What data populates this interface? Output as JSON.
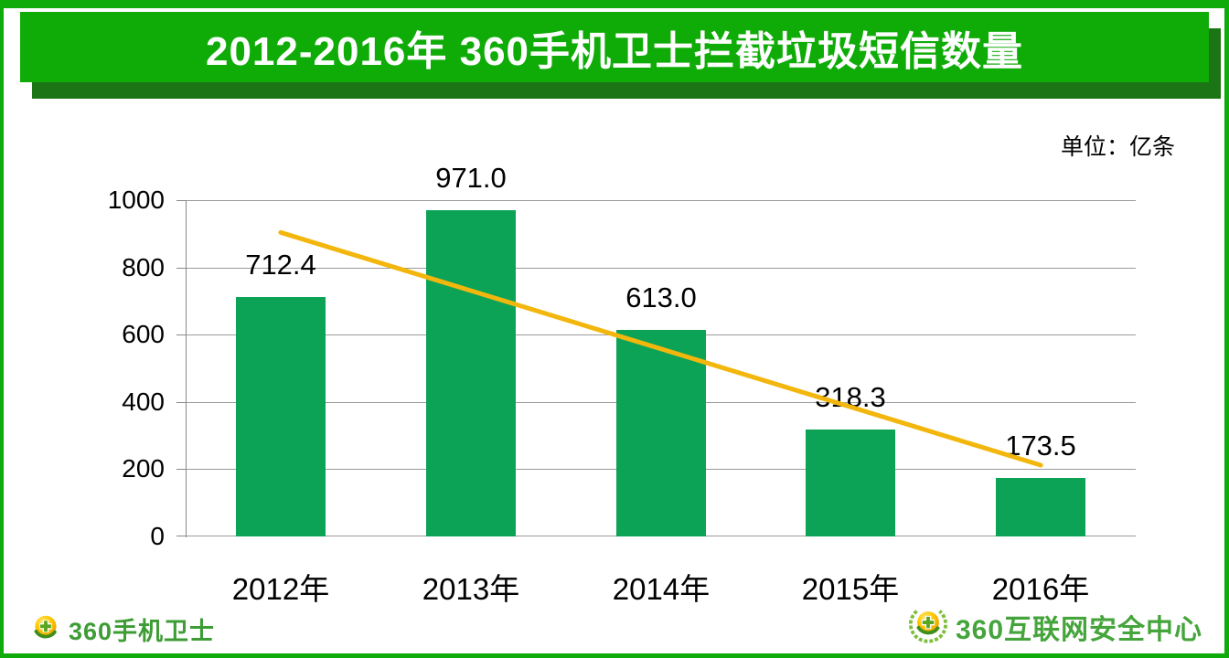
{
  "header": {
    "title": "2012-2016年 360手机卫士拦截垃圾短信数量"
  },
  "unit_note": "单位：亿条",
  "chart_data": {
    "type": "bar",
    "title": "2012-2016年 360手机卫士拦截垃圾短信数量",
    "unit": "亿条",
    "categories": [
      "2012年",
      "2013年",
      "2014年",
      "2015年",
      "2016年"
    ],
    "values": [
      712.4,
      971.0,
      613.0,
      318.3,
      173.5
    ],
    "value_label_decimals": 1,
    "ylim": [
      0,
      1000
    ],
    "y_ticks": [
      0,
      200,
      400,
      600,
      800,
      1000
    ],
    "grid": true,
    "legend": "none",
    "bar_color": "#0CA357",
    "gridline_color": "#9A9A9A",
    "trendline": {
      "type": "linear",
      "color": "#F3B60C",
      "start_value": 904,
      "end_value": 212
    }
  },
  "footer": {
    "left_logo": {
      "icon": "360-mobile-guard-ball-icon",
      "text": "360手机卫士",
      "color": "#3E9C35"
    },
    "right_logo": {
      "icon": "360-security-center-wreath-icon",
      "text": "360互联网安全中心",
      "color": "#45A53C"
    }
  },
  "colors": {
    "banner_green": "#0FAC08",
    "banner_shadow_green": "#1B7514",
    "frame_green": "#0FAB0A",
    "bar_green": "#0CA357",
    "trend_gold": "#F3B60C"
  }
}
